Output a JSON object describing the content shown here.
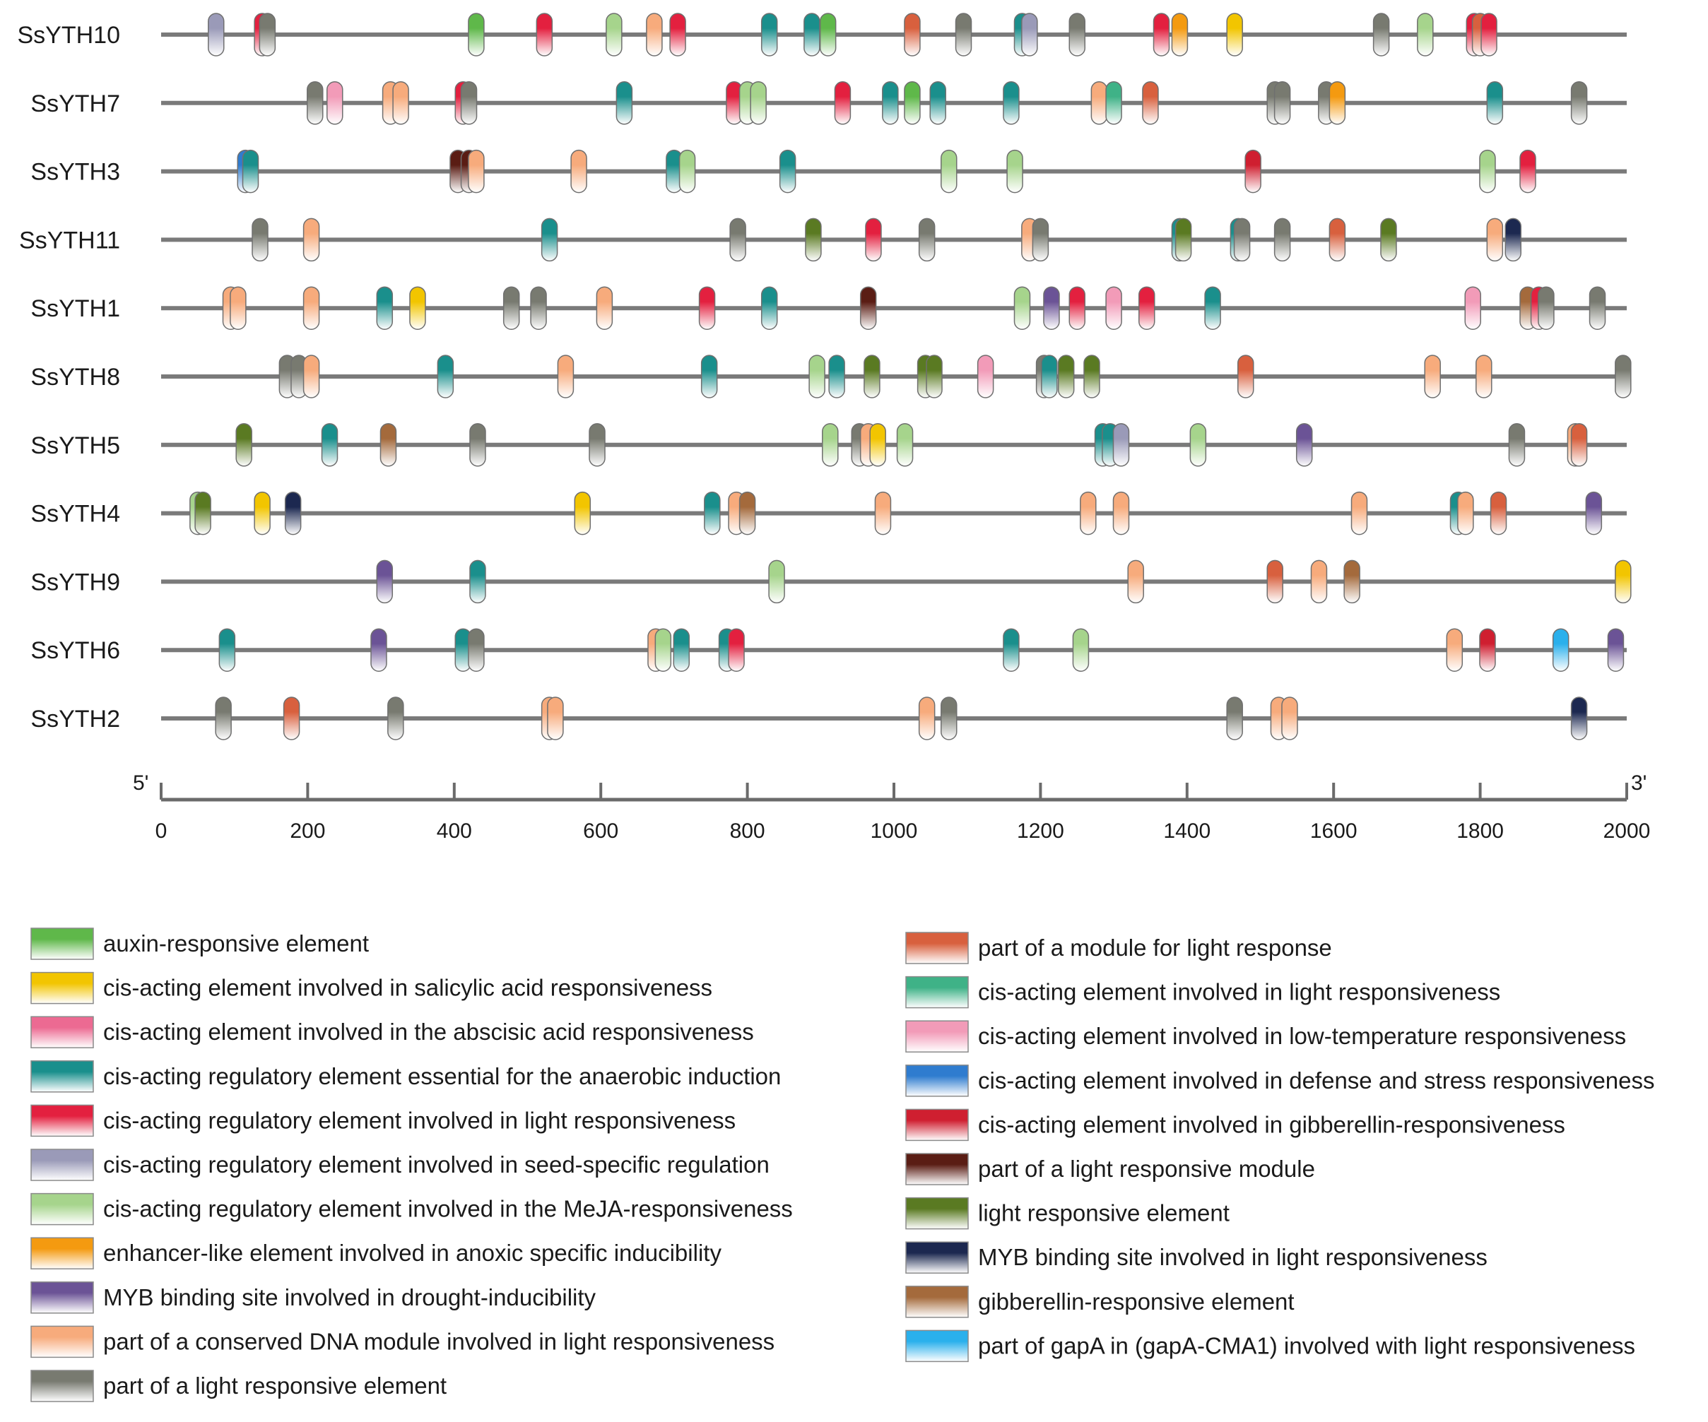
{
  "chart_data": {
    "type": "motif-map",
    "x_range": [
      0,
      2000
    ],
    "ticks": [
      0,
      200,
      400,
      600,
      800,
      1000,
      1200,
      1400,
      1600,
      1800,
      2000
    ],
    "start_label": "5'",
    "end_label": "3'",
    "legend": [
      {
        "id": "auxin",
        "label": "auxin-responsive element",
        "color": "#5fb84a"
      },
      {
        "id": "salicylic",
        "label": "cis-acting element involved in salicylic acid responsiveness",
        "color": "#f2c500"
      },
      {
        "id": "abscisic",
        "label": "cis-acting element involved in the abscisic acid responsiveness",
        "color": "#ec6a92"
      },
      {
        "id": "anaerobic",
        "label": "cis-acting regulatory element essential for the anaerobic induction",
        "color": "#1a8f8c"
      },
      {
        "id": "light_reg",
        "label": "cis-acting regulatory element involved in light responsiveness",
        "color": "#e3203f"
      },
      {
        "id": "seed",
        "label": "cis-acting regulatory element involved in seed-specific regulation",
        "color": "#9a9ab8"
      },
      {
        "id": "meja",
        "label": "cis-acting regulatory element involved in the MeJA-responsiveness",
        "color": "#a6d48c"
      },
      {
        "id": "anoxic",
        "label": "enhancer-like element involved in anoxic specific inducibility",
        "color": "#f49a10"
      },
      {
        "id": "myb_drought",
        "label": "MYB binding site involved in drought-inducibility",
        "color": "#6b5396"
      },
      {
        "id": "conserved",
        "label": "part of a conserved DNA module involved in light responsiveness",
        "color": "#f7ab7c"
      },
      {
        "id": "light_part",
        "label": "part of a light responsive element",
        "color": "#787a70"
      },
      {
        "id": "module_light",
        "label": "part of a module for light response",
        "color": "#d8603e"
      },
      {
        "id": "light_cis",
        "label": "cis-acting element involved in light responsiveness",
        "color": "#3fb287"
      },
      {
        "id": "lowtemp",
        "label": "cis-acting element involved in low-temperature responsiveness",
        "color": "#f29bb8"
      },
      {
        "id": "defense",
        "label": "cis-acting element involved in defense and stress responsiveness",
        "color": "#2f7ccf"
      },
      {
        "id": "gib_resp",
        "label": "cis-acting element involved in gibberellin-responsiveness",
        "color": "#cf1f30"
      },
      {
        "id": "light_module",
        "label": "part of a light responsive module",
        "color": "#5a1d14"
      },
      {
        "id": "light_el",
        "label": "light responsive element",
        "color": "#5a7a22"
      },
      {
        "id": "myb_light",
        "label": "MYB binding site involved in light responsiveness",
        "color": "#1c2850"
      },
      {
        "id": "gib_el",
        "label": "gibberellin-responsive element",
        "color": "#a46a3c"
      },
      {
        "id": "gapa",
        "label": "part of gapA in (gapA-CMA1) involved with light responsiveness",
        "color": "#2ab0ec"
      }
    ],
    "genes": [
      {
        "name": "SsYTH10",
        "length": 2000,
        "motifs": [
          {
            "pos": 75,
            "type": "seed"
          },
          {
            "pos": 138,
            "type": "light_reg"
          },
          {
            "pos": 145,
            "type": "light_part"
          },
          {
            "pos": 430,
            "type": "auxin"
          },
          {
            "pos": 523,
            "type": "light_reg"
          },
          {
            "pos": 618,
            "type": "meja"
          },
          {
            "pos": 673,
            "type": "conserved"
          },
          {
            "pos": 705,
            "type": "light_reg"
          },
          {
            "pos": 830,
            "type": "anaerobic"
          },
          {
            "pos": 888,
            "type": "anaerobic"
          },
          {
            "pos": 910,
            "type": "auxin"
          },
          {
            "pos": 1025,
            "type": "module_light"
          },
          {
            "pos": 1095,
            "type": "light_part"
          },
          {
            "pos": 1175,
            "type": "anaerobic"
          },
          {
            "pos": 1185,
            "type": "seed"
          },
          {
            "pos": 1250,
            "type": "light_part"
          },
          {
            "pos": 1365,
            "type": "light_reg"
          },
          {
            "pos": 1390,
            "type": "anoxic"
          },
          {
            "pos": 1465,
            "type": "salicylic"
          },
          {
            "pos": 1665,
            "type": "light_part"
          },
          {
            "pos": 1725,
            "type": "meja"
          },
          {
            "pos": 1792,
            "type": "light_reg"
          },
          {
            "pos": 1800,
            "type": "module_light"
          },
          {
            "pos": 1812,
            "type": "light_reg"
          }
        ]
      },
      {
        "name": "SsYTH7",
        "length": 2000,
        "motifs": [
          {
            "pos": 210,
            "type": "light_part"
          },
          {
            "pos": 237,
            "type": "lowtemp"
          },
          {
            "pos": 313,
            "type": "conserved"
          },
          {
            "pos": 327,
            "type": "conserved"
          },
          {
            "pos": 412,
            "type": "light_reg"
          },
          {
            "pos": 420,
            "type": "light_part"
          },
          {
            "pos": 632,
            "type": "anaerobic"
          },
          {
            "pos": 782,
            "type": "light_reg"
          },
          {
            "pos": 800,
            "type": "meja"
          },
          {
            "pos": 815,
            "type": "meja"
          },
          {
            "pos": 930,
            "type": "light_reg"
          },
          {
            "pos": 995,
            "type": "anaerobic"
          },
          {
            "pos": 1025,
            "type": "auxin"
          },
          {
            "pos": 1060,
            "type": "anaerobic"
          },
          {
            "pos": 1160,
            "type": "anaerobic"
          },
          {
            "pos": 1280,
            "type": "conserved"
          },
          {
            "pos": 1300,
            "type": "light_cis"
          },
          {
            "pos": 1350,
            "type": "module_light"
          },
          {
            "pos": 1520,
            "type": "light_part"
          },
          {
            "pos": 1530,
            "type": "light_part"
          },
          {
            "pos": 1590,
            "type": "light_part"
          },
          {
            "pos": 1605,
            "type": "anoxic"
          },
          {
            "pos": 1820,
            "type": "anaerobic"
          },
          {
            "pos": 1935,
            "type": "light_part"
          }
        ]
      },
      {
        "name": "SsYTH3",
        "length": 2000,
        "motifs": [
          {
            "pos": 115,
            "type": "defense"
          },
          {
            "pos": 122,
            "type": "anaerobic"
          },
          {
            "pos": 405,
            "type": "light_module"
          },
          {
            "pos": 420,
            "type": "light_module"
          },
          {
            "pos": 430,
            "type": "conserved"
          },
          {
            "pos": 570,
            "type": "conserved"
          },
          {
            "pos": 700,
            "type": "anaerobic"
          },
          {
            "pos": 718,
            "type": "meja"
          },
          {
            "pos": 855,
            "type": "anaerobic"
          },
          {
            "pos": 1075,
            "type": "meja"
          },
          {
            "pos": 1165,
            "type": "meja"
          },
          {
            "pos": 1490,
            "type": "gib_resp"
          },
          {
            "pos": 1810,
            "type": "meja"
          },
          {
            "pos": 1865,
            "type": "light_reg"
          }
        ]
      },
      {
        "name": "SsYTH11",
        "length": 2000,
        "motifs": [
          {
            "pos": 135,
            "type": "light_part"
          },
          {
            "pos": 205,
            "type": "conserved"
          },
          {
            "pos": 530,
            "type": "anaerobic"
          },
          {
            "pos": 787,
            "type": "light_part"
          },
          {
            "pos": 890,
            "type": "light_el"
          },
          {
            "pos": 972,
            "type": "light_reg"
          },
          {
            "pos": 1045,
            "type": "light_part"
          },
          {
            "pos": 1185,
            "type": "conserved"
          },
          {
            "pos": 1200,
            "type": "light_part"
          },
          {
            "pos": 1390,
            "type": "anaerobic"
          },
          {
            "pos": 1395,
            "type": "light_el"
          },
          {
            "pos": 1470,
            "type": "anaerobic"
          },
          {
            "pos": 1475,
            "type": "light_part"
          },
          {
            "pos": 1530,
            "type": "light_part"
          },
          {
            "pos": 1605,
            "type": "module_light"
          },
          {
            "pos": 1675,
            "type": "light_el"
          },
          {
            "pos": 1820,
            "type": "conserved"
          },
          {
            "pos": 1845,
            "type": "myb_light"
          }
        ]
      },
      {
        "name": "SsYTH1",
        "length": 2000,
        "motifs": [
          {
            "pos": 95,
            "type": "conserved"
          },
          {
            "pos": 105,
            "type": "conserved"
          },
          {
            "pos": 205,
            "type": "conserved"
          },
          {
            "pos": 305,
            "type": "anaerobic"
          },
          {
            "pos": 350,
            "type": "salicylic"
          },
          {
            "pos": 478,
            "type": "light_part"
          },
          {
            "pos": 515,
            "type": "light_part"
          },
          {
            "pos": 605,
            "type": "conserved"
          },
          {
            "pos": 745,
            "type": "light_reg"
          },
          {
            "pos": 830,
            "type": "anaerobic"
          },
          {
            "pos": 965,
            "type": "light_module"
          },
          {
            "pos": 1175,
            "type": "meja"
          },
          {
            "pos": 1215,
            "type": "myb_drought"
          },
          {
            "pos": 1250,
            "type": "light_reg"
          },
          {
            "pos": 1300,
            "type": "lowtemp"
          },
          {
            "pos": 1345,
            "type": "light_reg"
          },
          {
            "pos": 1435,
            "type": "anaerobic"
          },
          {
            "pos": 1790,
            "type": "lowtemp"
          },
          {
            "pos": 1865,
            "type": "gib_el"
          },
          {
            "pos": 1880,
            "type": "light_reg"
          },
          {
            "pos": 1890,
            "type": "light_part"
          },
          {
            "pos": 1960,
            "type": "light_part"
          }
        ]
      },
      {
        "name": "SsYTH8",
        "length": 2000,
        "motifs": [
          {
            "pos": 172,
            "type": "light_part"
          },
          {
            "pos": 188,
            "type": "light_part"
          },
          {
            "pos": 205,
            "type": "conserved"
          },
          {
            "pos": 388,
            "type": "anaerobic"
          },
          {
            "pos": 552,
            "type": "conserved"
          },
          {
            "pos": 748,
            "type": "anaerobic"
          },
          {
            "pos": 895,
            "type": "meja"
          },
          {
            "pos": 922,
            "type": "anaerobic"
          },
          {
            "pos": 970,
            "type": "light_el"
          },
          {
            "pos": 1043,
            "type": "light_el"
          },
          {
            "pos": 1055,
            "type": "light_el"
          },
          {
            "pos": 1125,
            "type": "lowtemp"
          },
          {
            "pos": 1205,
            "type": "light_part"
          },
          {
            "pos": 1212,
            "type": "anaerobic"
          },
          {
            "pos": 1235,
            "type": "light_el"
          },
          {
            "pos": 1270,
            "type": "light_el"
          },
          {
            "pos": 1480,
            "type": "module_light"
          },
          {
            "pos": 1735,
            "type": "conserved"
          },
          {
            "pos": 1805,
            "type": "conserved"
          },
          {
            "pos": 1995,
            "type": "light_part"
          }
        ]
      },
      {
        "name": "SsYTH5",
        "length": 2000,
        "motifs": [
          {
            "pos": 113,
            "type": "light_el"
          },
          {
            "pos": 230,
            "type": "anaerobic"
          },
          {
            "pos": 310,
            "type": "gib_el"
          },
          {
            "pos": 432,
            "type": "light_part"
          },
          {
            "pos": 595,
            "type": "light_part"
          },
          {
            "pos": 913,
            "type": "meja"
          },
          {
            "pos": 953,
            "type": "light_part"
          },
          {
            "pos": 965,
            "type": "conserved"
          },
          {
            "pos": 978,
            "type": "salicylic"
          },
          {
            "pos": 1015,
            "type": "meja"
          },
          {
            "pos": 1285,
            "type": "anaerobic"
          },
          {
            "pos": 1295,
            "type": "anaerobic"
          },
          {
            "pos": 1310,
            "type": "seed"
          },
          {
            "pos": 1415,
            "type": "meja"
          },
          {
            "pos": 1560,
            "type": "myb_drought"
          },
          {
            "pos": 1850,
            "type": "light_part"
          },
          {
            "pos": 1930,
            "type": "conserved"
          },
          {
            "pos": 1935,
            "type": "module_light"
          }
        ]
      },
      {
        "name": "SsYTH4",
        "length": 2000,
        "motifs": [
          {
            "pos": 50,
            "type": "meja"
          },
          {
            "pos": 57,
            "type": "light_el"
          },
          {
            "pos": 138,
            "type": "salicylic"
          },
          {
            "pos": 180,
            "type": "myb_light"
          },
          {
            "pos": 575,
            "type": "salicylic"
          },
          {
            "pos": 752,
            "type": "anaerobic"
          },
          {
            "pos": 785,
            "type": "conserved"
          },
          {
            "pos": 800,
            "type": "gib_el"
          },
          {
            "pos": 985,
            "type": "conserved"
          },
          {
            "pos": 1265,
            "type": "conserved"
          },
          {
            "pos": 1310,
            "type": "conserved"
          },
          {
            "pos": 1635,
            "type": "conserved"
          },
          {
            "pos": 1770,
            "type": "anaerobic"
          },
          {
            "pos": 1780,
            "type": "conserved"
          },
          {
            "pos": 1825,
            "type": "module_light"
          },
          {
            "pos": 1955,
            "type": "myb_drought"
          }
        ]
      },
      {
        "name": "SsYTH9",
        "length": 2000,
        "motifs": [
          {
            "pos": 305,
            "type": "myb_drought"
          },
          {
            "pos": 432,
            "type": "anaerobic"
          },
          {
            "pos": 840,
            "type": "meja"
          },
          {
            "pos": 1330,
            "type": "conserved"
          },
          {
            "pos": 1520,
            "type": "module_light"
          },
          {
            "pos": 1580,
            "type": "conserved"
          },
          {
            "pos": 1625,
            "type": "gib_el"
          },
          {
            "pos": 1995,
            "type": "salicylic"
          }
        ]
      },
      {
        "name": "SsYTH6",
        "length": 2000,
        "motifs": [
          {
            "pos": 90,
            "type": "anaerobic"
          },
          {
            "pos": 297,
            "type": "myb_drought"
          },
          {
            "pos": 412,
            "type": "anaerobic"
          },
          {
            "pos": 430,
            "type": "light_part"
          },
          {
            "pos": 675,
            "type": "conserved"
          },
          {
            "pos": 685,
            "type": "meja"
          },
          {
            "pos": 710,
            "type": "anaerobic"
          },
          {
            "pos": 772,
            "type": "anaerobic"
          },
          {
            "pos": 785,
            "type": "light_reg"
          },
          {
            "pos": 1160,
            "type": "anaerobic"
          },
          {
            "pos": 1255,
            "type": "meja"
          },
          {
            "pos": 1765,
            "type": "conserved"
          },
          {
            "pos": 1810,
            "type": "gib_resp"
          },
          {
            "pos": 1910,
            "type": "gapa"
          },
          {
            "pos": 1985,
            "type": "myb_drought"
          }
        ]
      },
      {
        "name": "SsYTH2",
        "length": 2000,
        "motifs": [
          {
            "pos": 85,
            "type": "light_part"
          },
          {
            "pos": 178,
            "type": "module_light"
          },
          {
            "pos": 320,
            "type": "light_part"
          },
          {
            "pos": 530,
            "type": "conserved"
          },
          {
            "pos": 538,
            "type": "conserved"
          },
          {
            "pos": 1045,
            "type": "conserved"
          },
          {
            "pos": 1075,
            "type": "light_part"
          },
          {
            "pos": 1465,
            "type": "light_part"
          },
          {
            "pos": 1525,
            "type": "conserved"
          },
          {
            "pos": 1540,
            "type": "conserved"
          },
          {
            "pos": 1935,
            "type": "myb_light"
          }
        ]
      }
    ]
  }
}
